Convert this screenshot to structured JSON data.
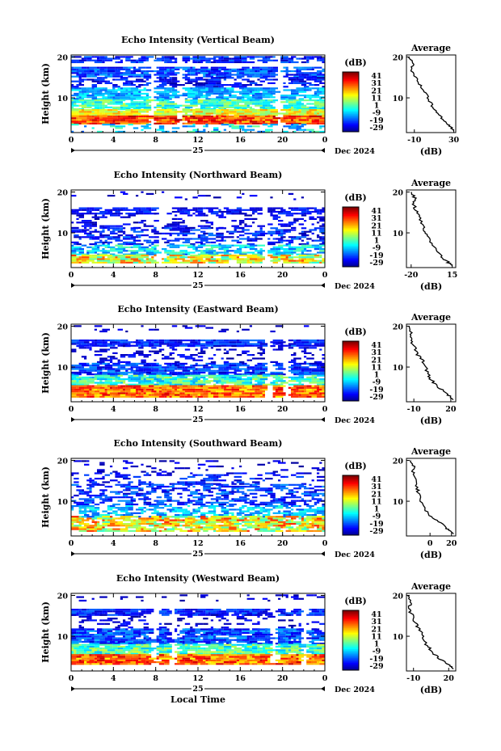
{
  "chart_data": [
    {
      "type": "heatmap",
      "title": "Echo Intensity (Vertical Beam)",
      "ylabel": "Height (km)",
      "yticks": [
        "20",
        "10"
      ],
      "xticks": [
        "0",
        "4",
        "8",
        "12",
        "16",
        "20",
        "0"
      ],
      "date_day": "25",
      "date_label": "Dec 2024",
      "xlim": [
        0,
        24
      ],
      "ylim": [
        1.5,
        20.5
      ],
      "colorbar": {
        "unit": "(dB)",
        "ticks": [
          "41",
          "31",
          "21",
          "11",
          "1",
          "-9",
          "-19",
          "-29"
        ],
        "range": [
          -29,
          41
        ]
      },
      "average": {
        "title": "Average",
        "xlabel": "(dB)",
        "xticks": [
          "-10",
          "30"
        ],
        "xlim": [
          -18,
          32
        ],
        "profile": [
          [
            30,
            2
          ],
          [
            28,
            2.5
          ],
          [
            24,
            3.5
          ],
          [
            18,
            5
          ],
          [
            12,
            6.5
          ],
          [
            8,
            8
          ],
          [
            4,
            10
          ],
          [
            0,
            11.5
          ],
          [
            -4,
            13
          ],
          [
            -9,
            15
          ],
          [
            -14,
            17
          ],
          [
            -11,
            18.5
          ],
          [
            -16,
            20
          ]
        ]
      },
      "rows": [
        {
          "h0": 18.5,
          "h1": 20.0,
          "lo": -25,
          "hi": -12,
          "cov": 0.75
        },
        {
          "h0": 15.0,
          "h1": 17.5,
          "lo": -23,
          "hi": -8,
          "cov": 0.85
        },
        {
          "h0": 12.5,
          "h1": 15.0,
          "lo": -26,
          "hi": -14,
          "cov": 0.55
        },
        {
          "h0": 9.5,
          "h1": 12.5,
          "lo": -15,
          "hi": -2,
          "cov": 0.85
        },
        {
          "h0": 7.0,
          "h1": 9.5,
          "lo": -8,
          "hi": 10,
          "cov": 0.9
        },
        {
          "h0": 5.5,
          "h1": 7.0,
          "lo": 5,
          "hi": 22,
          "cov": 0.95
        },
        {
          "h0": 3.5,
          "h1": 5.5,
          "lo": 18,
          "hi": 38,
          "cov": 1.0
        },
        {
          "h0": 1.5,
          "h1": 3.5,
          "lo": -15,
          "hi": 5,
          "cov": 0.3
        }
      ],
      "gaps": [
        7.5,
        10.2,
        19.5
      ]
    },
    {
      "type": "heatmap",
      "title": "Echo Intensity (Northward Beam)",
      "ylabel": "Height (km)",
      "yticks": [
        "20",
        "10"
      ],
      "xticks": [
        "0",
        "4",
        "8",
        "12",
        "16",
        "20",
        "0"
      ],
      "date_day": "25",
      "date_label": "Dec 2024",
      "xlim": [
        0,
        24
      ],
      "ylim": [
        1.5,
        20.5
      ],
      "colorbar": {
        "unit": "(dB)",
        "ticks": [
          "41",
          "31",
          "21",
          "11",
          "1",
          "-9",
          "-19",
          "-29"
        ],
        "range": [
          -29,
          41
        ]
      },
      "average": {
        "title": "Average",
        "xlabel": "(dB)",
        "xticks": [
          "-20",
          "15"
        ],
        "xlim": [
          -24,
          18
        ],
        "profile": [
          [
            15,
            2
          ],
          [
            13,
            2.5
          ],
          [
            8,
            3.5
          ],
          [
            3,
            5
          ],
          [
            -2,
            7
          ],
          [
            -5,
            9
          ],
          [
            -8,
            10.5
          ],
          [
            -10,
            12
          ],
          [
            -13,
            14
          ],
          [
            -16,
            15.5
          ],
          [
            -18,
            17
          ],
          [
            -17,
            18.5
          ],
          [
            -20,
            20
          ]
        ]
      },
      "rows": [
        {
          "h0": 18.0,
          "h1": 20.0,
          "lo": -27,
          "hi": -20,
          "cov": 0.08
        },
        {
          "h0": 14.5,
          "h1": 16.0,
          "lo": -25,
          "hi": -15,
          "cov": 0.7
        },
        {
          "h0": 11.0,
          "h1": 14.5,
          "lo": -27,
          "hi": -18,
          "cov": 0.3
        },
        {
          "h0": 7.0,
          "h1": 11.0,
          "lo": -26,
          "hi": -12,
          "cov": 0.5
        },
        {
          "h0": 4.5,
          "h1": 7.0,
          "lo": -15,
          "hi": 5,
          "cov": 0.75
        },
        {
          "h0": 2.5,
          "h1": 4.5,
          "lo": 0,
          "hi": 28,
          "cov": 0.9
        }
      ],
      "gaps": [
        8.2,
        18.2
      ]
    },
    {
      "type": "heatmap",
      "title": "Echo Intensity (Eastward Beam)",
      "ylabel": "Height (km)",
      "yticks": [
        "20",
        "10"
      ],
      "xticks": [
        "0",
        "4",
        "8",
        "12",
        "16",
        "20",
        "0"
      ],
      "date_day": "25",
      "date_label": "Dec 2024",
      "xlim": [
        0,
        24
      ],
      "ylim": [
        1.5,
        20.5
      ],
      "colorbar": {
        "unit": "(dB)",
        "ticks": [
          "41",
          "31",
          "21",
          "11",
          "1",
          "-9",
          "-19",
          "-29"
        ],
        "range": [
          -29,
          41
        ]
      },
      "average": {
        "title": "Average",
        "xlabel": "(dB)",
        "xticks": [
          "-10",
          "20"
        ],
        "xlim": [
          -16,
          24
        ],
        "profile": [
          [
            22,
            2
          ],
          [
            20,
            2.5
          ],
          [
            16,
            3.5
          ],
          [
            10,
            5
          ],
          [
            5,
            6.5
          ],
          [
            2,
            8
          ],
          [
            -1,
            10
          ],
          [
            -3,
            11.5
          ],
          [
            -7,
            13
          ],
          [
            -10,
            15
          ],
          [
            -13,
            16.5
          ],
          [
            -12,
            18
          ],
          [
            -14,
            20
          ]
        ]
      },
      "rows": [
        {
          "h0": 18.5,
          "h1": 20.0,
          "lo": -27,
          "hi": -20,
          "cov": 0.12
        },
        {
          "h0": 15.0,
          "h1": 16.5,
          "lo": -24,
          "hi": -12,
          "cov": 0.9
        },
        {
          "h0": 11.0,
          "h1": 15.0,
          "lo": -27,
          "hi": -18,
          "cov": 0.3
        },
        {
          "h0": 8.0,
          "h1": 11.0,
          "lo": -24,
          "hi": -10,
          "cov": 0.85
        },
        {
          "h0": 5.5,
          "h1": 8.0,
          "lo": -10,
          "hi": 10,
          "cov": 0.85
        },
        {
          "h0": 2.5,
          "h1": 5.5,
          "lo": 15,
          "hi": 35,
          "cov": 1.0
        }
      ],
      "gaps": [
        18.4,
        20.1
      ]
    },
    {
      "type": "heatmap",
      "title": "Echo Intensity (Southward Beam)",
      "ylabel": "Height (km)",
      "yticks": [
        "20",
        "10"
      ],
      "xticks": [
        "0",
        "4",
        "8",
        "12",
        "16",
        "20",
        "0"
      ],
      "date_day": "25",
      "date_label": "Dec 2024",
      "xlim": [
        0,
        24
      ],
      "ylim": [
        1.5,
        20.5
      ],
      "colorbar": {
        "unit": "(dB)",
        "ticks": [
          "41",
          "31",
          "21",
          "11",
          "1",
          "-9",
          "-19",
          "-29"
        ],
        "range": [
          -29,
          41
        ]
      },
      "average": {
        "title": "Average",
        "xlabel": "(dB)",
        "xticks": [
          "0",
          "20"
        ],
        "xlim": [
          -22,
          24
        ],
        "profile": [
          [
            22,
            2
          ],
          [
            20,
            2.5
          ],
          [
            15,
            3.5
          ],
          [
            8,
            5
          ],
          [
            0,
            6.5
          ],
          [
            -5,
            8
          ],
          [
            -8,
            10
          ],
          [
            -10,
            11.5
          ],
          [
            -12,
            13
          ],
          [
            -14,
            15
          ],
          [
            -16,
            17
          ],
          [
            -15,
            18.5
          ],
          [
            -18,
            20
          ]
        ]
      },
      "rows": [
        {
          "h0": 17.0,
          "h1": 20.0,
          "lo": -27,
          "hi": -20,
          "cov": 0.15
        },
        {
          "h0": 14.0,
          "h1": 17.0,
          "lo": -25,
          "hi": -14,
          "cov": 0.3
        },
        {
          "h0": 9.0,
          "h1": 14.0,
          "lo": -24,
          "hi": -10,
          "cov": 0.55
        },
        {
          "h0": 6.0,
          "h1": 9.0,
          "lo": -15,
          "hi": 0,
          "cov": 0.65
        },
        {
          "h0": 2.5,
          "h1": 6.0,
          "lo": 0,
          "hi": 30,
          "cov": 0.85
        }
      ],
      "gaps": []
    },
    {
      "type": "heatmap",
      "title": "Echo Intensity (Westward Beam)",
      "ylabel": "Height (km)",
      "yticks": [
        "20",
        "10"
      ],
      "xticks": [
        "0",
        "4",
        "8",
        "12",
        "16",
        "20",
        "0"
      ],
      "date_day": "25",
      "date_label": "Dec 2024",
      "xlim": [
        0,
        24
      ],
      "ylim": [
        1.5,
        20.5
      ],
      "xlabel": "Local Time",
      "colorbar": {
        "unit": "(dB)",
        "ticks": [
          "41",
          "31",
          "21",
          "11",
          "1",
          "-9",
          "-19",
          "-29"
        ],
        "range": [
          -29,
          41
        ]
      },
      "average": {
        "title": "Average",
        "xlabel": "(dB)",
        "xticks": [
          "-10",
          "20"
        ],
        "xlim": [
          -16,
          26
        ],
        "profile": [
          [
            24,
            2
          ],
          [
            22,
            2.5
          ],
          [
            17,
            3.5
          ],
          [
            10,
            5
          ],
          [
            5,
            6.5
          ],
          [
            1,
            8
          ],
          [
            -2,
            10
          ],
          [
            -5,
            11.5
          ],
          [
            -8,
            13
          ],
          [
            -11,
            15
          ],
          [
            -14,
            16.5
          ],
          [
            -12,
            18
          ],
          [
            -15,
            20
          ]
        ]
      },
      "rows": [
        {
          "h0": 18.5,
          "h1": 20.0,
          "lo": -27,
          "hi": -20,
          "cov": 0.15
        },
        {
          "h0": 15.0,
          "h1": 16.5,
          "lo": -24,
          "hi": -12,
          "cov": 0.9
        },
        {
          "h0": 11.5,
          "h1": 15.0,
          "lo": -27,
          "hi": -18,
          "cov": 0.25
        },
        {
          "h0": 8.0,
          "h1": 11.5,
          "lo": -23,
          "hi": -8,
          "cov": 0.9
        },
        {
          "h0": 5.5,
          "h1": 8.0,
          "lo": -8,
          "hi": 12,
          "cov": 0.95
        },
        {
          "h0": 3.0,
          "h1": 5.5,
          "lo": 15,
          "hi": 36,
          "cov": 1.0
        }
      ],
      "gaps": [
        7.8,
        9.3,
        19.0,
        22.0
      ]
    }
  ]
}
